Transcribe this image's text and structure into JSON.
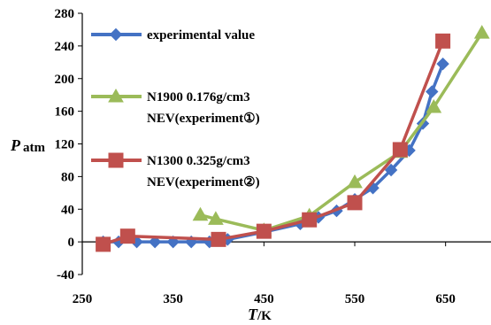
{
  "chart_data": {
    "type": "line",
    "x_axis": {
      "title": "T",
      "unit": "/K",
      "range": [
        250,
        700
      ],
      "ticks": [
        250,
        350,
        450,
        550,
        650
      ],
      "tick_labels": [
        "250",
        "350",
        "450",
        "550",
        "650"
      ]
    },
    "y_axis": {
      "title": "P",
      "unit": "atm",
      "range": [
        -40,
        280
      ],
      "ticks": [
        -40,
        0,
        40,
        80,
        120,
        160,
        200,
        240,
        280
      ],
      "tick_labels": [
        "-40",
        "0",
        "40",
        "80",
        "120",
        "160",
        "200",
        "240",
        "280"
      ]
    },
    "grid": false,
    "legend_position": "top-left",
    "series": [
      {
        "name": "experimental value",
        "legend_lines": [
          "experimental value"
        ],
        "color": "#4472C4",
        "marker": "diamond",
        "x": [
          273,
          290,
          310,
          330,
          350,
          370,
          390,
          410,
          450,
          490,
          510,
          530,
          550,
          570,
          590,
          610,
          625,
          635,
          647
        ],
        "y": [
          0,
          0,
          0,
          0,
          0,
          0,
          0,
          3,
          12,
          22,
          30,
          38,
          52,
          66,
          88,
          112,
          145,
          184,
          218
        ]
      },
      {
        "name": "N1900 0.176g/cm3 NEV(experiment①)",
        "legend_lines": [
          "N1900 0.176g/cm3",
          "NEV(experiment①)"
        ],
        "color": "#9BBB59",
        "marker": "triangle",
        "x": [
          380,
          397,
          450,
          500,
          550,
          600,
          637,
          690
        ],
        "y": [
          33,
          28,
          14,
          32,
          73,
          110,
          165,
          256
        ]
      },
      {
        "name": "N1300 0.325g/cm3 NEV(experiment②)",
        "legend_lines": [
          "N1300 0.325g/cm3",
          "NEV(experiment②)"
        ],
        "color": "#C0504D",
        "marker": "square",
        "x": [
          273,
          300,
          400,
          450,
          500,
          550,
          600,
          647
        ],
        "y": [
          -3,
          7,
          3,
          13,
          27,
          48,
          113,
          246
        ]
      }
    ]
  }
}
